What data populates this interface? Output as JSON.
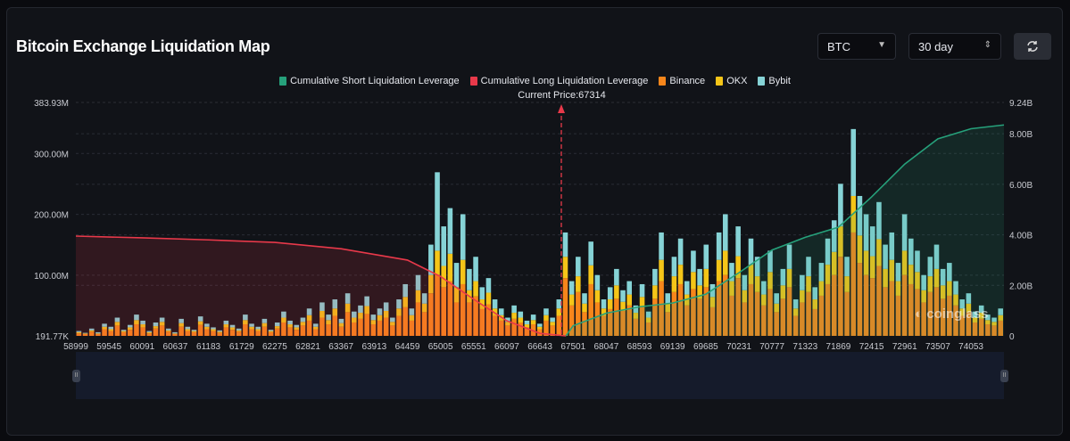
{
  "header": {
    "title": "Bitcoin Exchange Liquidation Map",
    "coin_select": "BTC",
    "period_select": "30 day",
    "refresh_icon": "refresh-icon"
  },
  "watermark": "coinglass",
  "zoom_handles": {
    "left": "II",
    "right": "II"
  },
  "chart_data": {
    "type": "bar",
    "current_price_label": "Current Price:67314",
    "current_price": 67314,
    "legend": [
      "Cumulative Short Liquidation Leverage",
      "Cumulative Long Liquidation Leverage",
      "Binance",
      "OKX",
      "Bybit"
    ],
    "colors": {
      "short": "#26a17b",
      "long": "#e8394a",
      "binance": "#f7861b",
      "okx": "#f5c518",
      "bybit": "#86d3d6"
    },
    "left_axis_ticks": [
      "383.93M",
      "300.00M",
      "200.00M",
      "100.00M",
      "191.77K"
    ],
    "left_axis_values": [
      383.93,
      300,
      200,
      100,
      0.19177
    ],
    "right_axis_ticks": [
      "9.24B",
      "8.00B",
      "6.00B",
      "4.00B",
      "2.00B",
      "0"
    ],
    "right_axis_values": [
      9.24,
      8,
      6,
      4,
      2,
      0
    ],
    "x_ticks": [
      "58999",
      "59545",
      "60091",
      "60637",
      "61183",
      "61729",
      "62275",
      "62821",
      "63367",
      "63913",
      "64459",
      "65005",
      "65551",
      "66097",
      "66643",
      "67501",
      "68047",
      "68593",
      "69139",
      "69685",
      "70231",
      "70777",
      "71323",
      "71869",
      "72415",
      "72961",
      "73507",
      "74053"
    ],
    "bars_unit": "M",
    "bars": [
      [
        4,
        2,
        2
      ],
      [
        3,
        1,
        1
      ],
      [
        7,
        2,
        3
      ],
      [
        3,
        1,
        2
      ],
      [
        11,
        4,
        5
      ],
      [
        8,
        3,
        4
      ],
      [
        17,
        6,
        7
      ],
      [
        6,
        2,
        2
      ],
      [
        10,
        4,
        4
      ],
      [
        19,
        7,
        9
      ],
      [
        14,
        5,
        6
      ],
      [
        4,
        2,
        2
      ],
      [
        12,
        4,
        6
      ],
      [
        17,
        6,
        7
      ],
      [
        7,
        2,
        3
      ],
      [
        3,
        1,
        2
      ],
      [
        15,
        6,
        7
      ],
      [
        8,
        3,
        4
      ],
      [
        6,
        2,
        2
      ],
      [
        18,
        6,
        8
      ],
      [
        11,
        4,
        5
      ],
      [
        8,
        3,
        3
      ],
      [
        5,
        2,
        2
      ],
      [
        14,
        5,
        6
      ],
      [
        10,
        4,
        4
      ],
      [
        7,
        2,
        3
      ],
      [
        19,
        7,
        9
      ],
      [
        11,
        4,
        5
      ],
      [
        8,
        3,
        4
      ],
      [
        15,
        6,
        7
      ],
      [
        6,
        2,
        2
      ],
      [
        12,
        4,
        6
      ],
      [
        22,
        8,
        10
      ],
      [
        14,
        5,
        6
      ],
      [
        10,
        4,
        4
      ],
      [
        17,
        6,
        7
      ],
      [
        25,
        9,
        11
      ],
      [
        11,
        4,
        5
      ],
      [
        30,
        11,
        14
      ],
      [
        19,
        7,
        9
      ],
      [
        33,
        12,
        15
      ],
      [
        15,
        6,
        7
      ],
      [
        39,
        14,
        17
      ],
      [
        22,
        8,
        10
      ],
      [
        28,
        10,
        12
      ],
      [
        36,
        13,
        16
      ],
      [
        19,
        7,
        9
      ],
      [
        25,
        9,
        11
      ],
      [
        30,
        11,
        14
      ],
      [
        17,
        6,
        7
      ],
      [
        33,
        12,
        15
      ],
      [
        47,
        17,
        21
      ],
      [
        25,
        9,
        11
      ],
      [
        55,
        20,
        25
      ],
      [
        39,
        14,
        17
      ],
      [
        70,
        30,
        50
      ],
      [
        100,
        40,
        129
      ],
      [
        80,
        35,
        65
      ],
      [
        90,
        45,
        75
      ],
      [
        55,
        25,
        40
      ],
      [
        85,
        40,
        75
      ],
      [
        55,
        20,
        35
      ],
      [
        65,
        25,
        40
      ],
      [
        44,
        16,
        20
      ],
      [
        52,
        19,
        24
      ],
      [
        33,
        12,
        15
      ],
      [
        25,
        9,
        11
      ],
      [
        17,
        6,
        7
      ],
      [
        28,
        10,
        12
      ],
      [
        22,
        8,
        10
      ],
      [
        14,
        5,
        6
      ],
      [
        19,
        7,
        9
      ],
      [
        11,
        4,
        5
      ],
      [
        25,
        9,
        11
      ],
      [
        17,
        6,
        7
      ],
      [
        33,
        12,
        15
      ],
      [
        95,
        35,
        40
      ],
      [
        50,
        18,
        22
      ],
      [
        72,
        26,
        32
      ],
      [
        39,
        14,
        17
      ],
      [
        85,
        31,
        39
      ],
      [
        55,
        20,
        25
      ],
      [
        33,
        12,
        15
      ],
      [
        44,
        16,
        20
      ],
      [
        61,
        22,
        27
      ],
      [
        41,
        15,
        19
      ],
      [
        50,
        18,
        22
      ],
      [
        28,
        10,
        12
      ],
      [
        47,
        17,
        21
      ],
      [
        22,
        8,
        10
      ],
      [
        61,
        22,
        27
      ],
      [
        90,
        35,
        45
      ],
      [
        39,
        14,
        17
      ],
      [
        72,
        26,
        32
      ],
      [
        85,
        32,
        43
      ],
      [
        50,
        18,
        22
      ],
      [
        77,
        28,
        35
      ],
      [
        61,
        22,
        27
      ],
      [
        80,
        30,
        40
      ],
      [
        47,
        17,
        21
      ],
      [
        90,
        35,
        45
      ],
      [
        100,
        40,
        60
      ],
      [
        66,
        24,
        30
      ],
      [
        95,
        36,
        49
      ],
      [
        55,
        20,
        25
      ],
      [
        85,
        32,
        43
      ],
      [
        72,
        26,
        32
      ],
      [
        50,
        18,
        22
      ],
      [
        77,
        28,
        35
      ],
      [
        39,
        14,
        17
      ],
      [
        61,
        22,
        27
      ],
      [
        80,
        30,
        40
      ],
      [
        33,
        12,
        15
      ],
      [
        55,
        20,
        25
      ],
      [
        72,
        26,
        32
      ],
      [
        44,
        16,
        20
      ],
      [
        66,
        24,
        30
      ],
      [
        85,
        32,
        43
      ],
      [
        100,
        38,
        52
      ],
      [
        130,
        50,
        70
      ],
      [
        72,
        26,
        32
      ],
      [
        170,
        60,
        110
      ],
      [
        120,
        45,
        65
      ],
      [
        100,
        40,
        60
      ],
      [
        95,
        36,
        49
      ],
      [
        115,
        44,
        61
      ],
      [
        80,
        30,
        40
      ],
      [
        90,
        35,
        45
      ],
      [
        66,
        24,
        30
      ],
      [
        100,
        40,
        60
      ],
      [
        85,
        32,
        43
      ],
      [
        77,
        28,
        35
      ],
      [
        55,
        20,
        25
      ],
      [
        72,
        26,
        32
      ],
      [
        80,
        30,
        40
      ],
      [
        61,
        22,
        27
      ],
      [
        66,
        24,
        30
      ],
      [
        50,
        18,
        22
      ],
      [
        33,
        12,
        15
      ],
      [
        39,
        14,
        17
      ],
      [
        22,
        8,
        10
      ],
      [
        28,
        10,
        12
      ],
      [
        19,
        7,
        9
      ],
      [
        17,
        6,
        7
      ],
      [
        25,
        9,
        11
      ]
    ],
    "long_cumulative_B": [
      [
        58999,
        3.95
      ],
      [
        60091,
        3.88
      ],
      [
        61183,
        3.8
      ],
      [
        62275,
        3.7
      ],
      [
        63367,
        3.45
      ],
      [
        64459,
        3.0
      ],
      [
        65005,
        2.35
      ],
      [
        65551,
        1.45
      ],
      [
        66097,
        0.6
      ],
      [
        66643,
        0.1
      ],
      [
        67314,
        0
      ]
    ],
    "short_cumulative_B": [
      [
        67314,
        0
      ],
      [
        67501,
        0.4
      ],
      [
        68047,
        0.9
      ],
      [
        68593,
        1.15
      ],
      [
        69139,
        1.3
      ],
      [
        69685,
        1.65
      ],
      [
        70231,
        2.5
      ],
      [
        70777,
        3.4
      ],
      [
        71323,
        3.9
      ],
      [
        71869,
        4.3
      ],
      [
        72415,
        5.5
      ],
      [
        72961,
        6.8
      ],
      [
        73507,
        7.8
      ],
      [
        74053,
        8.2
      ],
      [
        74600,
        8.35
      ]
    ]
  }
}
